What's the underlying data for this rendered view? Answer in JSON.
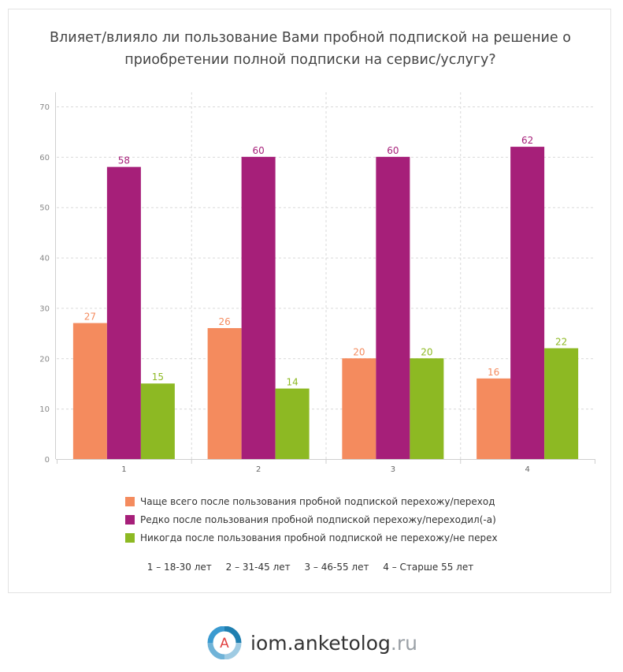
{
  "title": "Влияет/влияло ли пользование Вами пробной подпиской на решение о приобретении полной подписки на сервис/услугу?",
  "legend": [
    {
      "label": "Чаще всего после пользования пробной подпиской перехожу/переход",
      "color": "#f48b5e"
    },
    {
      "label": "Редко после пользования пробной подпиской перехожу/переходил(-а)",
      "color": "#a61f79"
    },
    {
      "label": "Никогда после пользования пробной подпиской не перехожу/не перех",
      "color": "#8db923"
    }
  ],
  "groups_note": [
    "1 – 18-30 лет",
    "2 – 31-45 лет",
    "3 – 46-55 лет",
    "4 – Старше 55 лет"
  ],
  "brand": {
    "name": "iom.anketolog",
    "tld": ".ru",
    "logo_letter": "A",
    "logo_icon": "anketolog-logo-icon"
  },
  "chart_data": {
    "type": "bar",
    "categories": [
      "1",
      "2",
      "3",
      "4"
    ],
    "series": [
      {
        "name": "Чаще всего после пользования пробной подпиской перехожу/переход",
        "values": [
          27,
          26,
          20,
          16
        ],
        "color": "#f48b5e"
      },
      {
        "name": "Редко после пользования пробной подпиской перехожу/переходил(-а)",
        "values": [
          58,
          60,
          60,
          62
        ],
        "color": "#a61f79"
      },
      {
        "name": "Никогда после пользования пробной подпиской не перехожу/не перех",
        "values": [
          15,
          14,
          20,
          22
        ],
        "color": "#8db923"
      }
    ],
    "ylim": [
      0,
      70
    ],
    "yticks": [
      0,
      10,
      20,
      30,
      40,
      50,
      60,
      70
    ],
    "grid": true,
    "legend_position": "bottom"
  }
}
